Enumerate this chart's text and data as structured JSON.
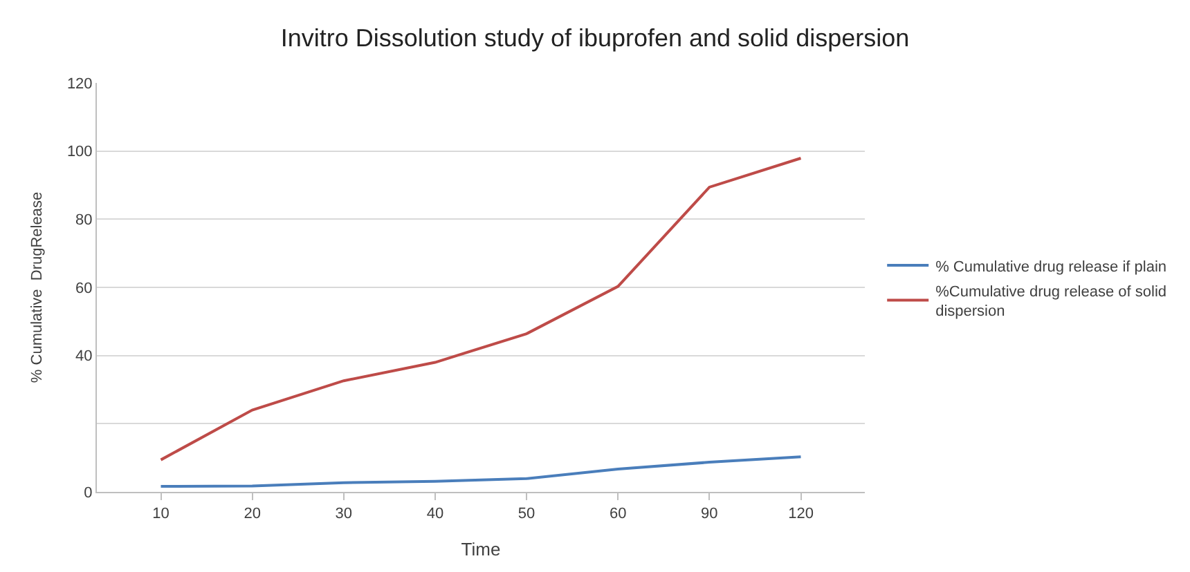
{
  "chart_data": {
    "type": "line",
    "title": "Invitro Dissolution study of ibuprofen and solid dispersion",
    "xlabel": "Time",
    "ylabel": "% Cumulative  DrugRelease",
    "categories": [
      "10",
      "20",
      "30",
      "40",
      "50",
      "60",
      "90",
      "120"
    ],
    "series": [
      {
        "name": "% Cumulative drug release if plain",
        "color": "#4a7ebb",
        "values": [
          1.6,
          1.7,
          2.7,
          3.1,
          3.9,
          6.7,
          8.7,
          10.3
        ]
      },
      {
        "name": "%Cumulative drug release of solid dispersion",
        "color": "#be4b48",
        "values": [
          9.4,
          24,
          32.6,
          38,
          46.4,
          60.3,
          89.4,
          97.9
        ]
      }
    ],
    "ylim": [
      0,
      120
    ],
    "yticks": [
      0,
      {
        "value": 20,
        "label": null
      },
      40,
      60,
      80,
      100,
      120
    ],
    "grid": "y",
    "legend": "right",
    "marker": "none",
    "line_style": "solid"
  }
}
